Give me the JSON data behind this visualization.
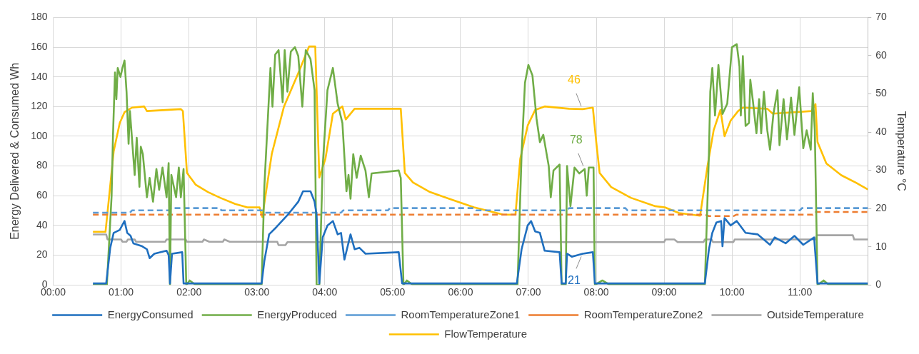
{
  "chart_data": {
    "type": "line",
    "xlabel": null,
    "ylabel": "Energy Delivered & Consumed Wh",
    "y2label": "Temperature °C",
    "xlim": [
      0,
      12
    ],
    "xticks": [
      {
        "value": 0,
        "label": "00:00"
      },
      {
        "value": 1,
        "label": "01:00"
      },
      {
        "value": 2,
        "label": "02:00"
      },
      {
        "value": 3,
        "label": "03:00"
      },
      {
        "value": 4,
        "label": "04:00"
      },
      {
        "value": 5,
        "label": "05:00"
      },
      {
        "value": 6,
        "label": "06:00"
      },
      {
        "value": 7,
        "label": "07:00"
      },
      {
        "value": 8,
        "label": "08:00"
      },
      {
        "value": 9,
        "label": "09:00"
      },
      {
        "value": 10,
        "label": "10:00"
      },
      {
        "value": 11,
        "label": "11:00"
      }
    ],
    "ylim": [
      0,
      180
    ],
    "yticks": [
      0,
      20,
      40,
      60,
      80,
      100,
      120,
      140,
      160,
      180
    ],
    "y2lim": [
      0,
      70
    ],
    "y2ticks": [
      0,
      10,
      20,
      30,
      40,
      50,
      60,
      70
    ],
    "grid": true,
    "legend": "bottom",
    "marker": "none",
    "series": [
      {
        "name": "EnergyConsumed",
        "color": "#1f6fbf",
        "line_style": "solid",
        "x": [
          0.585,
          0.78,
          0.84,
          0.89,
          0.98,
          1.05,
          1.09,
          1.14,
          1.18,
          1.31,
          1.38,
          1.42,
          1.49,
          1.67,
          1.7,
          1.72,
          1.75,
          1.9,
          1.92,
          2.96,
          3.07,
          3.11,
          3.18,
          3.29,
          3.47,
          3.61,
          3.68,
          3.79,
          3.85,
          3.88,
          3.92,
          3.97,
          4.04,
          4.12,
          4.19,
          4.24,
          4.29,
          4.38,
          4.44,
          4.51,
          4.6,
          5.09,
          5.14,
          6.83,
          6.9,
          6.99,
          7.04,
          7.1,
          7.17,
          7.24,
          7.46,
          7.49,
          7.55,
          7.57,
          7.64,
          7.8,
          7.95,
          7.98,
          9.6,
          9.66,
          9.71,
          9.77,
          9.84,
          9.86,
          9.89,
          9.98,
          10.07,
          10.2,
          10.38,
          10.56,
          10.63,
          10.79,
          10.92,
          11.05,
          11.21,
          11.26,
          12.0
        ],
        "values": [
          1,
          1,
          25,
          35,
          37,
          43,
          35,
          33,
          28,
          26,
          24,
          18,
          21,
          23,
          20,
          1,
          21,
          22,
          1,
          1,
          1,
          16,
          34,
          39,
          48,
          56,
          63,
          63,
          56,
          47,
          1,
          32,
          40,
          43,
          34,
          35,
          17,
          34,
          24,
          25,
          21,
          22,
          1,
          1,
          24,
          40,
          43,
          36,
          35,
          23,
          22,
          1,
          1,
          21,
          19,
          21,
          22,
          1,
          1,
          24,
          35,
          42,
          43,
          26,
          45,
          40,
          43,
          35,
          34,
          27,
          32,
          28,
          33,
          27,
          32,
          1,
          1
        ],
        "value_labels": [
          null,
          null,
          null,
          null,
          null,
          null,
          null,
          null,
          null,
          null,
          null,
          null,
          null,
          null,
          null,
          null,
          null,
          null,
          null,
          null,
          null,
          null,
          null,
          null,
          null,
          null,
          null,
          null,
          null,
          null,
          null,
          null,
          null,
          null,
          null,
          null,
          null,
          null,
          null,
          null,
          null,
          null,
          null,
          null,
          null,
          null,
          null,
          null,
          null,
          null,
          null,
          null,
          null,
          null,
          null,
          "21",
          null,
          null,
          null,
          null,
          null,
          null,
          null,
          null,
          null,
          null,
          null,
          null,
          null,
          null,
          null,
          null,
          null,
          null,
          null,
          null,
          null
        ]
      },
      {
        "name": "EnergyProduced",
        "color": "#70ad47",
        "line_style": "solid",
        "x": [
          0.585,
          0.79,
          0.86,
          0.88,
          0.91,
          0.93,
          0.95,
          0.99,
          1.02,
          1.05,
          1.08,
          1.11,
          1.13,
          1.2,
          1.23,
          1.27,
          1.29,
          1.32,
          1.38,
          1.42,
          1.47,
          1.52,
          1.56,
          1.61,
          1.67,
          1.7,
          1.72,
          1.74,
          1.81,
          1.85,
          1.88,
          1.92,
          1.96,
          2.01,
          2.1,
          3.07,
          3.11,
          3.2,
          3.23,
          3.27,
          3.32,
          3.38,
          3.41,
          3.45,
          3.5,
          3.56,
          3.61,
          3.67,
          3.72,
          3.79,
          3.85,
          3.88,
          3.92,
          3.97,
          4.04,
          4.12,
          4.19,
          4.26,
          4.32,
          4.35,
          4.38,
          4.42,
          4.47,
          4.53,
          4.6,
          4.65,
          4.69,
          5.09,
          5.12,
          5.16,
          5.21,
          5.3,
          6.84,
          6.9,
          6.95,
          7.0,
          7.06,
          7.12,
          7.17,
          7.22,
          7.3,
          7.33,
          7.37,
          7.46,
          7.49,
          7.55,
          7.57,
          7.62,
          7.68,
          7.75,
          7.83,
          7.86,
          7.89,
          7.96,
          7.98,
          8.09,
          8.2,
          9.6,
          9.66,
          9.68,
          9.71,
          9.75,
          9.8,
          9.86,
          9.93,
          10.0,
          10.07,
          10.11,
          10.13,
          10.16,
          10.2,
          10.25,
          10.27,
          10.31,
          10.36,
          10.4,
          10.43,
          10.47,
          10.52,
          10.56,
          10.61,
          10.67,
          10.7,
          10.76,
          10.81,
          10.87,
          10.92,
          10.99,
          11.05,
          11.1,
          11.16,
          11.19,
          11.22,
          11.26,
          11.35,
          11.43,
          12.0
        ],
        "values": [
          0,
          0,
          60,
          100,
          143,
          125,
          146,
          140,
          146,
          151,
          130,
          95,
          117,
          74,
          99,
          66,
          93,
          88,
          59,
          72,
          56,
          78,
          64,
          79,
          59,
          82,
          0,
          74,
          59,
          79,
          59,
          78,
          0,
          3,
          0,
          0,
          66,
          146,
          120,
          155,
          158,
          123,
          158,
          130,
          157,
          160,
          154,
          120,
          158,
          152,
          131,
          0,
          0,
          80,
          131,
          146,
          122,
          109,
          63,
          74,
          58,
          88,
          72,
          87,
          77,
          59,
          75,
          77,
          72,
          0,
          3,
          0,
          0,
          88,
          136,
          148,
          141,
          112,
          96,
          101,
          80,
          59,
          77,
          81,
          0,
          0,
          80,
          53,
          79,
          75,
          78,
          60,
          79,
          79,
          0,
          3,
          0,
          0,
          88,
          130,
          146,
          114,
          148,
          115,
          122,
          160,
          162,
          147,
          114,
          154,
          107,
          109,
          138,
          123,
          102,
          125,
          102,
          130,
          104,
          91,
          115,
          131,
          94,
          125,
          98,
          126,
          101,
          133,
          92,
          104,
          91,
          129,
          104,
          0,
          3,
          0,
          0
        ],
        "value_labels": [
          null,
          null,
          null,
          null,
          null,
          null,
          null,
          null,
          null,
          null,
          null,
          null,
          null,
          null,
          null,
          null,
          null,
          null,
          null,
          null,
          null,
          null,
          null,
          null,
          null,
          null,
          null,
          null,
          null,
          null,
          null,
          null,
          null,
          null,
          null,
          null,
          null,
          null,
          null,
          null,
          null,
          null,
          null,
          null,
          null,
          null,
          null,
          null,
          null,
          null,
          null,
          null,
          null,
          null,
          null,
          null,
          null,
          null,
          null,
          null,
          null,
          null,
          null,
          null,
          null,
          null,
          null,
          null,
          null,
          null,
          null,
          null,
          null,
          null,
          null,
          null,
          null,
          null,
          null,
          null,
          null,
          null,
          null,
          null,
          null,
          null,
          null,
          null,
          null,
          null,
          "78",
          null,
          null,
          null,
          null,
          null,
          null,
          null,
          null,
          null,
          null,
          null,
          null,
          null,
          null,
          null,
          null,
          null,
          null,
          null,
          null,
          null,
          null,
          null,
          null,
          null,
          null,
          null,
          null,
          null,
          null,
          null,
          null,
          null,
          null,
          null,
          null,
          null,
          null,
          null,
          null,
          null,
          null,
          null,
          null,
          null,
          null
        ]
      },
      {
        "name": "RoomTemperatureZone1",
        "color": "#5b9bd5",
        "line_style": "dashed",
        "axis": "y2",
        "x": [
          0.585,
          1.13,
          1.16,
          1.7,
          1.74,
          2.45,
          2.48,
          3.08,
          3.11,
          4.24,
          4.27,
          4.93,
          4.96,
          6.2,
          6.23,
          7.57,
          7.6,
          8.43,
          8.46,
          11.0,
          11.03,
          12.0
        ],
        "values": [
          18.9,
          18.9,
          19.5,
          19.5,
          20.1,
          20.1,
          19.5,
          19.5,
          18.9,
          18.9,
          19.5,
          19.5,
          20.1,
          20.1,
          19.5,
          19.5,
          20.1,
          20.1,
          19.5,
          19.5,
          20.1,
          20.1
        ]
      },
      {
        "name": "RoomTemperatureZone2",
        "color": "#ed7d31",
        "line_style": "dashed",
        "axis": "y2",
        "x": [
          0.585,
          9.6,
          9.66,
          10.02,
          10.07,
          11.19,
          11.22,
          12.0
        ],
        "values": [
          18.4,
          18.4,
          18.0,
          18.0,
          18.4,
          18.4,
          19.1,
          19.1
        ]
      },
      {
        "name": "OutsideTemperature",
        "color": "#a5a5a5",
        "line_style": "solid",
        "axis": "y2",
        "x": [
          0.585,
          0.78,
          0.8,
          1.0,
          1.02,
          1.08,
          1.1,
          1.2,
          1.22,
          1.65,
          1.67,
          1.95,
          1.97,
          2.2,
          2.22,
          2.3,
          2.5,
          2.52,
          2.6,
          3.3,
          3.32,
          3.42,
          3.45,
          9.0,
          9.02,
          9.15,
          9.2,
          9.58,
          9.6,
          9.7,
          9.72,
          10.02,
          10.04,
          11.23,
          11.25,
          11.78,
          11.8,
          12.0
        ],
        "values": [
          13.2,
          13.2,
          11.9,
          11.9,
          11.3,
          11.3,
          11.9,
          11.9,
          11.3,
          11.3,
          11.9,
          11.9,
          11.3,
          11.3,
          11.9,
          11.3,
          11.3,
          11.9,
          11.3,
          11.3,
          10.4,
          10.4,
          11.2,
          11.2,
          11.9,
          11.9,
          11.2,
          11.2,
          11.9,
          11.9,
          11.2,
          11.2,
          11.9,
          11.9,
          13.0,
          13.0,
          11.9,
          11.9
        ]
      },
      {
        "name": "FlowTemperature",
        "color": "#ffc000",
        "line_style": "solid",
        "axis": "y2",
        "x": [
          0.585,
          0.77,
          0.82,
          0.89,
          0.98,
          1.05,
          1.16,
          1.34,
          1.38,
          1.88,
          1.91,
          1.97,
          2.1,
          2.28,
          2.46,
          2.68,
          2.86,
          3.04,
          3.08,
          3.22,
          3.4,
          3.61,
          3.77,
          3.86,
          3.92,
          4.01,
          4.12,
          4.26,
          4.31,
          4.44,
          5.12,
          5.18,
          5.3,
          5.55,
          5.84,
          6.2,
          6.63,
          6.81,
          6.88,
          6.99,
          7.1,
          7.24,
          7.6,
          7.8,
          7.95,
          8.0,
          8.05,
          8.22,
          8.51,
          8.87,
          9.01,
          9.22,
          9.53,
          9.64,
          9.73,
          9.83,
          9.89,
          9.98,
          10.09,
          10.16,
          10.52,
          10.6,
          11.17,
          11.23,
          11.26,
          11.39,
          11.61,
          11.82,
          12.0
        ],
        "values": [
          13.9,
          13.9,
          22.5,
          34.9,
          42.4,
          45.2,
          46.4,
          46.7,
          45.5,
          46,
          45.5,
          29.3,
          26.2,
          24.3,
          22.8,
          21.2,
          20.3,
          20.3,
          17.8,
          34.3,
          46.7,
          55.4,
          62.4,
          62.4,
          28.1,
          33,
          44.8,
          46.7,
          43.3,
          46.1,
          46.1,
          29.3,
          26.8,
          24.3,
          22.5,
          20.3,
          18.4,
          18.4,
          33,
          41.7,
          45.8,
          46.7,
          46.1,
          46,
          46.4,
          37.4,
          29.3,
          25.6,
          22.8,
          20.6,
          20.3,
          18.8,
          18.1,
          31.2,
          40.5,
          45.8,
          38.9,
          43,
          45.5,
          46.4,
          46.1,
          44.8,
          45.5,
          47.3,
          37.4,
          31.8,
          28.7,
          26.8,
          25.0
        ],
        "value_labels": [
          null,
          null,
          null,
          null,
          null,
          null,
          null,
          null,
          null,
          null,
          null,
          null,
          null,
          null,
          null,
          null,
          null,
          null,
          null,
          null,
          null,
          null,
          null,
          null,
          null,
          null,
          null,
          null,
          null,
          null,
          null,
          null,
          null,
          null,
          null,
          null,
          null,
          null,
          null,
          null,
          null,
          null,
          null,
          "46",
          null,
          null,
          null,
          null,
          null,
          null,
          null,
          null,
          null,
          null,
          null,
          null,
          null,
          null,
          null,
          null,
          null,
          null,
          null,
          null,
          null,
          null,
          null,
          null,
          null
        ]
      }
    ]
  }
}
